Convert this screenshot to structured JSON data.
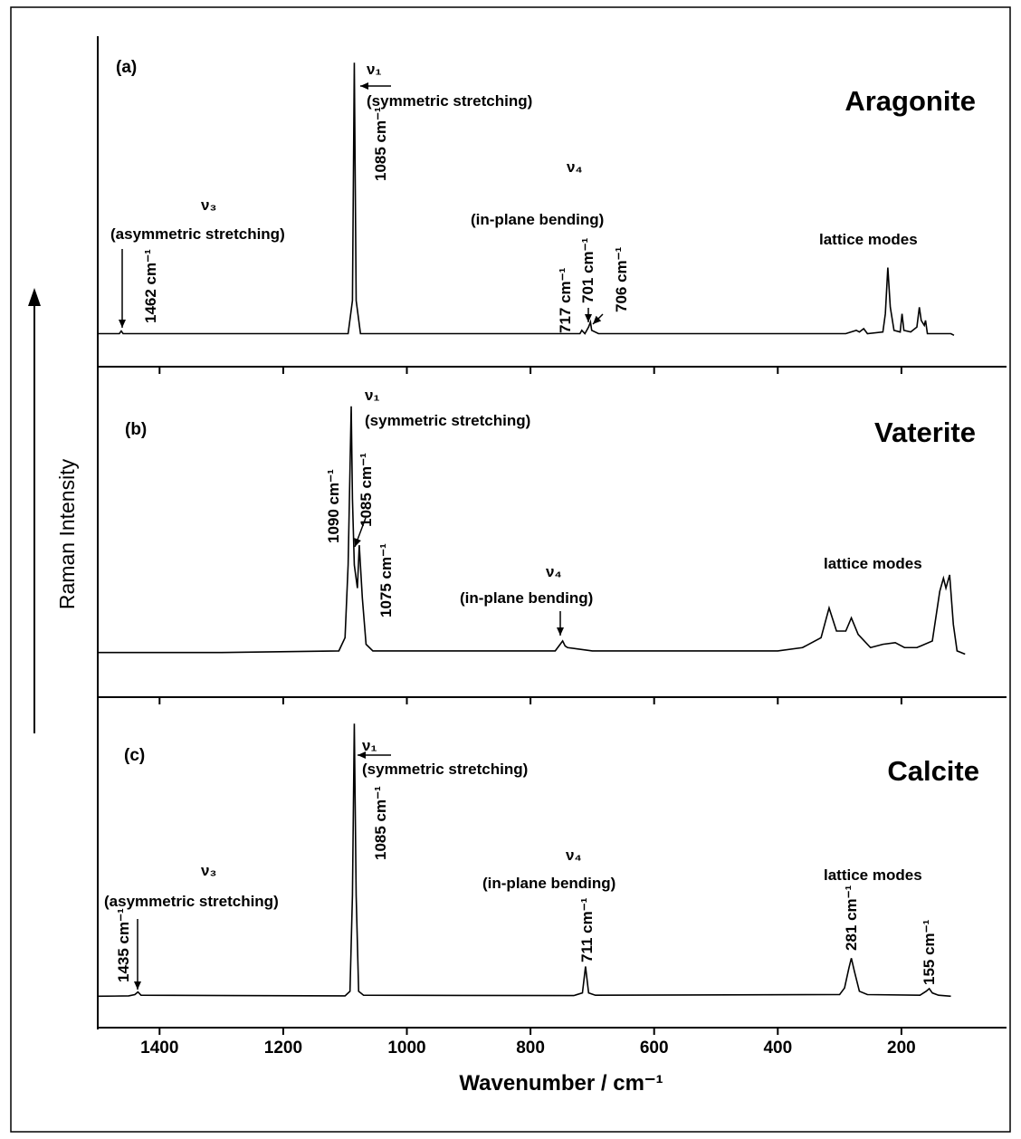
{
  "chart_data": {
    "type": "line",
    "xlabel": "Wavenumber /  cm⁻¹",
    "ylabel": "Raman Intensity",
    "xlim": [
      1500,
      30
    ],
    "xticks": [
      1400,
      1200,
      1000,
      800,
      600,
      400,
      200
    ],
    "ylim": [
      0,
      100
    ],
    "color": "#000000",
    "panels": [
      {
        "label": "(a)",
        "name": "Aragonite",
        "x": [
          1500,
          1465,
          1462,
          1459,
          1300,
          1120,
          1095,
          1088,
          1085,
          1082,
          1075,
          800,
          720,
          717,
          712,
          706,
          703,
          701,
          690,
          400,
          290,
          273,
          268,
          261,
          255,
          230,
          226,
          222,
          218,
          212,
          202,
          199,
          196,
          185,
          175,
          171,
          168,
          163,
          161,
          158,
          145,
          120,
          115
        ],
        "values": [
          10,
          10,
          10.8,
          10,
          10,
          10,
          10,
          20,
          92,
          20,
          10,
          10,
          10,
          11,
          10,
          12,
          13.5,
          11,
          10,
          10,
          10,
          11,
          10.5,
          11.5,
          10,
          10.5,
          16,
          30,
          18,
          11,
          10.5,
          16,
          11,
          10.5,
          12,
          18,
          14,
          12.5,
          14,
          10,
          10,
          10,
          9.5
        ],
        "annotations": [
          "ν₁",
          "(symmetric stretching)",
          "1085 cm⁻¹",
          "ν₃",
          "(asymmetric stretching)",
          "1462 cm⁻¹",
          "ν₄",
          "(in-plane bending)",
          "717 cm⁻¹",
          "701 cm⁻¹",
          "706 cm⁻¹",
          "lattice modes"
        ]
      },
      {
        "label": "(b)",
        "name": "Vaterite",
        "x": [
          1500,
          1300,
          1110,
          1100,
          1095,
          1090,
          1088,
          1085,
          1080,
          1077,
          1072,
          1066,
          1055,
          760,
          752,
          748,
          744,
          740,
          700,
          400,
          360,
          330,
          317,
          305,
          290,
          281,
          270,
          250,
          230,
          210,
          195,
          175,
          150,
          138,
          132,
          128,
          122,
          116,
          110,
          97
        ],
        "values": [
          13.5,
          13.5,
          14,
          18,
          40,
          88,
          60,
          40,
          33,
          46,
          30,
          16,
          14,
          14,
          16,
          17,
          15.5,
          15,
          14,
          14,
          15,
          18,
          27,
          20,
          20,
          24,
          19,
          15,
          16,
          16.5,
          15,
          15,
          17,
          32,
          36,
          33,
          37,
          22,
          14,
          13
        ],
        "annotations": [
          "ν₁",
          "(symmetric stretching)",
          "1090 cm⁻¹",
          "1085 cm⁻¹",
          "1075 cm⁻¹",
          "ν₄",
          "(in-plane bending)",
          "lattice modes"
        ]
      },
      {
        "label": "(c)",
        "name": "Calcite",
        "x": [
          1500,
          1450,
          1440,
          1435,
          1430,
          1100,
          1092,
          1088,
          1085,
          1082,
          1078,
          1070,
          730,
          716,
          711,
          706,
          695,
          300,
          292,
          285,
          281,
          276,
          268,
          255,
          170,
          160,
          155,
          150,
          140,
          120
        ],
        "values": [
          9.5,
          9.6,
          10,
          10.8,
          9.8,
          9.6,
          11,
          40,
          92,
          40,
          11,
          9.8,
          9.7,
          10.5,
          18.5,
          10.5,
          9.8,
          10,
          12,
          18,
          21,
          17,
          11,
          10,
          9.8,
          11,
          11.8,
          10.5,
          9.8,
          9.5
        ],
        "annotations": [
          "ν₁",
          "(symmetric stretching)",
          "1085 cm⁻¹",
          "ν₃",
          "(asymmetric stretching)",
          "1435 cm⁻¹",
          "ν₄",
          "(in-plane bending)",
          "711 cm⁻¹",
          "lattice modes",
          "281 cm⁻¹",
          "155 cm⁻¹"
        ]
      }
    ]
  }
}
